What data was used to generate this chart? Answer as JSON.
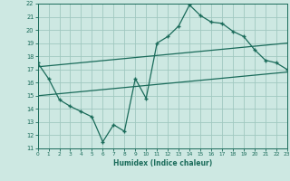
{
  "xlabel": "Humidex (Indice chaleur)",
  "bg_color": "#cde8e2",
  "grid_color": "#a0c8c0",
  "line_color": "#1a6b5a",
  "xlim": [
    0,
    23
  ],
  "ylim": [
    11,
    22
  ],
  "xticks": [
    0,
    1,
    2,
    3,
    4,
    5,
    6,
    7,
    8,
    9,
    10,
    11,
    12,
    13,
    14,
    15,
    16,
    17,
    18,
    19,
    20,
    21,
    22,
    23
  ],
  "yticks": [
    11,
    12,
    13,
    14,
    15,
    16,
    17,
    18,
    19,
    20,
    21,
    22
  ],
  "line1_x": [
    0,
    1,
    2,
    3,
    4,
    5,
    6,
    7,
    8,
    9,
    10,
    11,
    12,
    13,
    14,
    15,
    16,
    17,
    18,
    19,
    20,
    21,
    22,
    23
  ],
  "line1_y": [
    17.5,
    16.3,
    14.7,
    14.2,
    13.8,
    13.4,
    11.5,
    12.8,
    12.3,
    16.3,
    14.8,
    19.0,
    19.5,
    20.3,
    21.9,
    21.1,
    20.6,
    20.5,
    19.9,
    19.5,
    18.5,
    17.7,
    17.5,
    17.0
  ],
  "line2_x": [
    0,
    23
  ],
  "line2_y": [
    17.2,
    19.0
  ],
  "line3_x": [
    0,
    23
  ],
  "line3_y": [
    15.0,
    16.8
  ]
}
